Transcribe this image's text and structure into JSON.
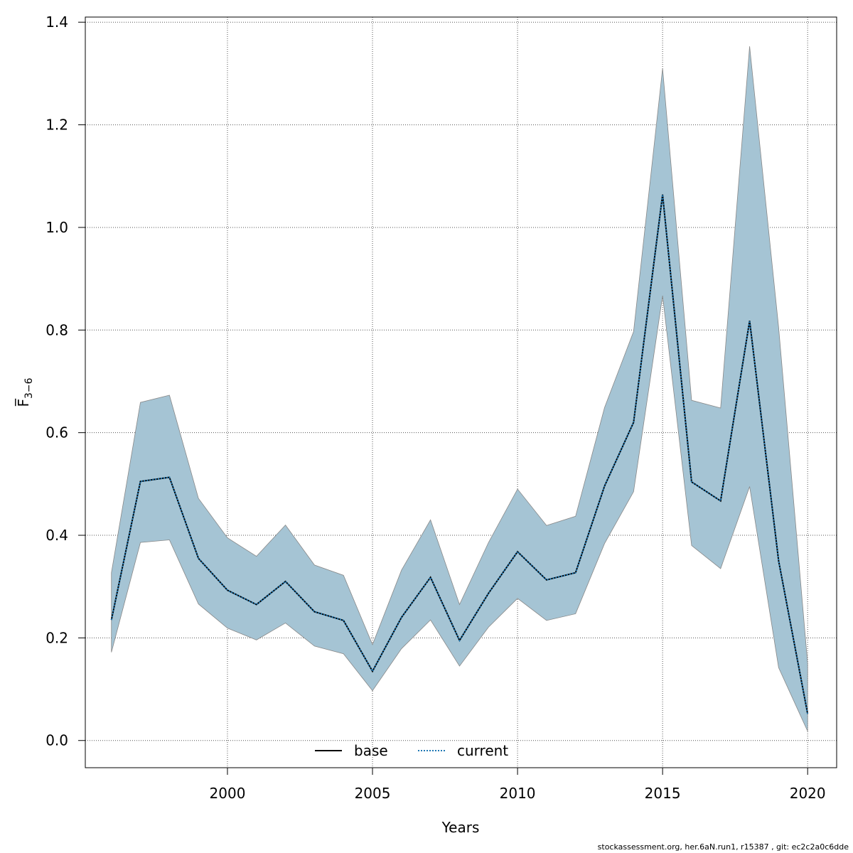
{
  "chart_data": {
    "type": "area",
    "xlabel": "Years",
    "ylabel": "F̅",
    "ylabel_subscript": "3−6",
    "xlim": [
      1995.1,
      2021.0
    ],
    "ylim": [
      -0.053,
      1.41
    ],
    "x_ticks": [
      2000,
      2005,
      2010,
      2015,
      2020
    ],
    "x_tick_labels": [
      "2000",
      "2005",
      "2010",
      "2015",
      "2020"
    ],
    "y_ticks": [
      0.0,
      0.2,
      0.4,
      0.6,
      0.8,
      1.0,
      1.2,
      1.4
    ],
    "y_tick_labels": [
      "0.0",
      "0.2",
      "0.4",
      "0.6",
      "0.8",
      "1.0",
      "1.2",
      "1.4"
    ],
    "grid": true,
    "legend_position": "bottom-center",
    "x": [
      1996,
      1997,
      1998,
      1999,
      2000,
      2001,
      2002,
      2003,
      2004,
      2005,
      2006,
      2007,
      2008,
      2009,
      2010,
      2011,
      2012,
      2013,
      2014,
      2015,
      2016,
      2017,
      2018,
      2019,
      2020
    ],
    "series": [
      {
        "name": "base",
        "style": "solid",
        "color": "#000000",
        "values": [
          0.235,
          0.505,
          0.513,
          0.355,
          0.293,
          0.265,
          0.31,
          0.251,
          0.234,
          0.135,
          0.24,
          0.318,
          0.195,
          0.287,
          0.368,
          0.313,
          0.327,
          0.496,
          0.62,
          1.064,
          0.504,
          0.467,
          0.818,
          0.35,
          0.052
        ]
      },
      {
        "name": "current",
        "style": "dotted",
        "color": "#1f78b4",
        "values": [
          0.235,
          0.505,
          0.513,
          0.355,
          0.293,
          0.265,
          0.31,
          0.251,
          0.234,
          0.135,
          0.24,
          0.318,
          0.195,
          0.287,
          0.368,
          0.313,
          0.327,
          0.496,
          0.62,
          1.064,
          0.504,
          0.467,
          0.818,
          0.35,
          0.052
        ]
      }
    ],
    "band": {
      "color": "#a5c4d4",
      "edge_color": "#888888",
      "lower": [
        0.172,
        0.386,
        0.391,
        0.266,
        0.219,
        0.196,
        0.229,
        0.184,
        0.169,
        0.097,
        0.179,
        0.235,
        0.145,
        0.221,
        0.277,
        0.234,
        0.247,
        0.384,
        0.485,
        0.867,
        0.38,
        0.335,
        0.495,
        0.142,
        0.018
      ],
      "upper": [
        0.327,
        0.659,
        0.673,
        0.472,
        0.395,
        0.359,
        0.42,
        0.342,
        0.322,
        0.187,
        0.332,
        0.43,
        0.265,
        0.386,
        0.49,
        0.419,
        0.437,
        0.649,
        0.797,
        1.31,
        0.663,
        0.648,
        1.353,
        0.805,
        0.15
      ]
    }
  },
  "footer": "stockassessment.org, her.6aN.run1, r15387 , git: ec2c2a0c6dde"
}
